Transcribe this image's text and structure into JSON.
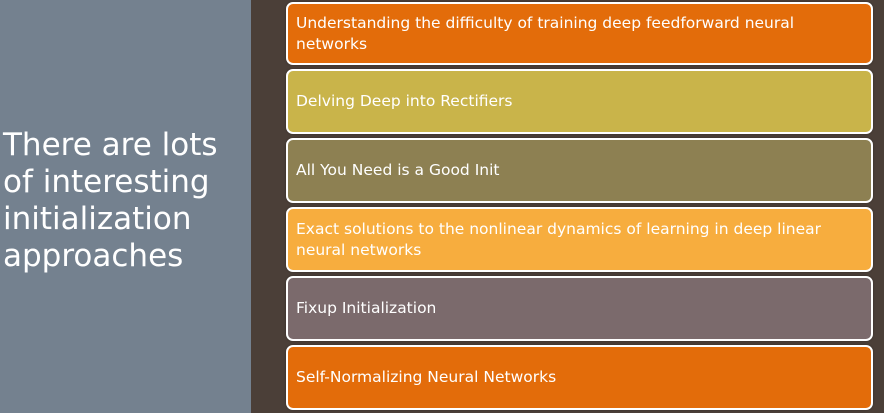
{
  "slide": {
    "title": "There are lots\nof interesting\ninitialization\napproaches"
  },
  "items": [
    {
      "label": "Understanding the difficulty of training deep feedforward neural networks",
      "color": "#e36c0a"
    },
    {
      "label": "Delving Deep into Rectifiers",
      "color": "#c9b44a"
    },
    {
      "label": "All You Need is a Good Init",
      "color": "#8d8052"
    },
    {
      "label": "Exact solutions to the nonlinear dynamics of learning in deep linear neural networks",
      "color": "#f7ad3e"
    },
    {
      "label": "Fixup Initialization",
      "color": "#7b6a6c"
    },
    {
      "label": "Self-Normalizing Neural Networks",
      "color": "#e36c0a"
    }
  ]
}
